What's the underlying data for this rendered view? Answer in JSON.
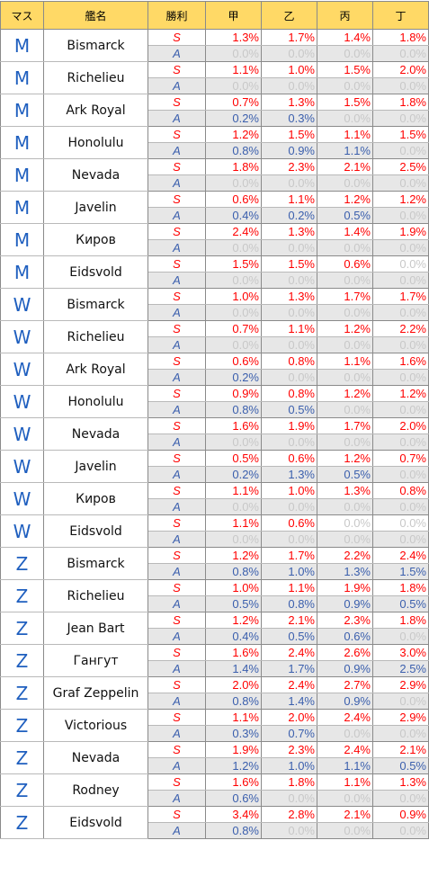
{
  "headers": [
    "マス",
    "艦名",
    "勝利",
    "甲",
    "乙",
    "丙",
    "丁"
  ],
  "groups": [
    {
      "node": "M",
      "ship": "Bismarck",
      "S": [
        "1.3%",
        "1.7%",
        "1.4%",
        "1.8%"
      ],
      "A": [
        "0.0%",
        "0.0%",
        "0.0%",
        "0.0%"
      ]
    },
    {
      "node": "M",
      "ship": "Richelieu",
      "S": [
        "1.1%",
        "1.0%",
        "1.5%",
        "2.0%"
      ],
      "A": [
        "0.0%",
        "0.0%",
        "0.0%",
        "0.0%"
      ]
    },
    {
      "node": "M",
      "ship": "Ark Royal",
      "S": [
        "0.7%",
        "1.3%",
        "1.5%",
        "1.8%"
      ],
      "A": [
        "0.2%",
        "0.3%",
        "0.0%",
        "0.0%"
      ]
    },
    {
      "node": "M",
      "ship": "Honolulu",
      "S": [
        "1.2%",
        "1.5%",
        "1.1%",
        "1.5%"
      ],
      "A": [
        "0.8%",
        "0.9%",
        "1.1%",
        "0.0%"
      ]
    },
    {
      "node": "M",
      "ship": "Nevada",
      "S": [
        "1.8%",
        "2.3%",
        "2.1%",
        "2.5%"
      ],
      "A": [
        "0.0%",
        "0.0%",
        "0.0%",
        "0.0%"
      ]
    },
    {
      "node": "M",
      "ship": "Javelin",
      "S": [
        "0.6%",
        "1.1%",
        "1.2%",
        "1.2%"
      ],
      "A": [
        "0.4%",
        "0.2%",
        "0.5%",
        "0.0%"
      ]
    },
    {
      "node": "M",
      "ship": "Киров",
      "S": [
        "2.4%",
        "1.3%",
        "1.4%",
        "1.9%"
      ],
      "A": [
        "0.0%",
        "0.0%",
        "0.0%",
        "0.0%"
      ]
    },
    {
      "node": "M",
      "ship": "Eidsvold",
      "S": [
        "1.5%",
        "1.5%",
        "0.6%",
        "0.0%"
      ],
      "A": [
        "0.0%",
        "0.0%",
        "0.0%",
        "0.0%"
      ]
    },
    {
      "node": "W",
      "ship": "Bismarck",
      "S": [
        "1.0%",
        "1.3%",
        "1.7%",
        "1.7%"
      ],
      "A": [
        "0.0%",
        "0.0%",
        "0.0%",
        "0.0%"
      ]
    },
    {
      "node": "W",
      "ship": "Richelieu",
      "S": [
        "0.7%",
        "1.1%",
        "1.2%",
        "2.2%"
      ],
      "A": [
        "0.0%",
        "0.0%",
        "0.0%",
        "0.0%"
      ]
    },
    {
      "node": "W",
      "ship": "Ark Royal",
      "S": [
        "0.6%",
        "0.8%",
        "1.1%",
        "1.6%"
      ],
      "A": [
        "0.2%",
        "0.0%",
        "0.0%",
        "0.0%"
      ]
    },
    {
      "node": "W",
      "ship": "Honolulu",
      "S": [
        "0.9%",
        "0.8%",
        "1.2%",
        "1.2%"
      ],
      "A": [
        "0.8%",
        "0.5%",
        "0.0%",
        "0.0%"
      ]
    },
    {
      "node": "W",
      "ship": "Nevada",
      "S": [
        "1.6%",
        "1.9%",
        "1.7%",
        "2.0%"
      ],
      "A": [
        "0.0%",
        "0.0%",
        "0.0%",
        "0.0%"
      ]
    },
    {
      "node": "W",
      "ship": "Javelin",
      "S": [
        "0.5%",
        "0.6%",
        "1.2%",
        "0.7%"
      ],
      "A": [
        "0.2%",
        "1.3%",
        "0.5%",
        "0.0%"
      ]
    },
    {
      "node": "W",
      "ship": "Киров",
      "S": [
        "1.1%",
        "1.0%",
        "1.3%",
        "0.8%"
      ],
      "A": [
        "0.0%",
        "0.0%",
        "0.0%",
        "0.0%"
      ]
    },
    {
      "node": "W",
      "ship": "Eidsvold",
      "S": [
        "1.1%",
        "0.6%",
        "0.0%",
        "0.0%"
      ],
      "A": [
        "0.0%",
        "0.0%",
        "0.0%",
        "0.0%"
      ]
    },
    {
      "node": "Z",
      "ship": "Bismarck",
      "S": [
        "1.2%",
        "1.7%",
        "2.2%",
        "2.4%"
      ],
      "A": [
        "0.8%",
        "1.0%",
        "1.3%",
        "1.5%"
      ]
    },
    {
      "node": "Z",
      "ship": "Richelieu",
      "S": [
        "1.0%",
        "1.1%",
        "1.9%",
        "1.8%"
      ],
      "A": [
        "0.5%",
        "0.8%",
        "0.9%",
        "0.5%"
      ]
    },
    {
      "node": "Z",
      "ship": "Jean Bart",
      "S": [
        "1.2%",
        "2.1%",
        "2.3%",
        "1.8%"
      ],
      "A": [
        "0.4%",
        "0.5%",
        "0.6%",
        "0.0%"
      ]
    },
    {
      "node": "Z",
      "ship": "Гангут",
      "S": [
        "1.6%",
        "2.4%",
        "2.6%",
        "3.0%"
      ],
      "A": [
        "1.4%",
        "1.7%",
        "0.9%",
        "2.5%"
      ]
    },
    {
      "node": "Z",
      "ship": "Graf Zeppelin",
      "S": [
        "2.0%",
        "2.4%",
        "2.7%",
        "2.9%"
      ],
      "A": [
        "0.8%",
        "1.4%",
        "0.9%",
        "0.0%"
      ]
    },
    {
      "node": "Z",
      "ship": "Victorious",
      "S": [
        "1.1%",
        "2.0%",
        "2.4%",
        "2.9%"
      ],
      "A": [
        "0.3%",
        "0.7%",
        "0.0%",
        "0.0%"
      ]
    },
    {
      "node": "Z",
      "ship": "Nevada",
      "S": [
        "1.9%",
        "2.3%",
        "2.4%",
        "2.1%"
      ],
      "A": [
        "1.2%",
        "1.0%",
        "1.1%",
        "0.5%"
      ]
    },
    {
      "node": "Z",
      "ship": "Rodney",
      "S": [
        "1.6%",
        "1.8%",
        "1.1%",
        "1.3%"
      ],
      "A": [
        "0.6%",
        "0.0%",
        "0.0%",
        "0.0%"
      ]
    },
    {
      "node": "Z",
      "ship": "Eidsvold",
      "S": [
        "3.4%",
        "2.8%",
        "2.1%",
        "0.9%"
      ],
      "A": [
        "0.8%",
        "0.0%",
        "0.0%",
        "0.0%"
      ]
    }
  ],
  "rank_labels": {
    "S": "S",
    "A": "A"
  },
  "colors": {
    "header_bg": "#ffd966",
    "node_text": "#1f5fbf",
    "s_rank": "#ff0000",
    "a_rank": "#3b5fad",
    "a_row_bg": "#e7e7e7",
    "zero_value": "#c8c8c8"
  }
}
